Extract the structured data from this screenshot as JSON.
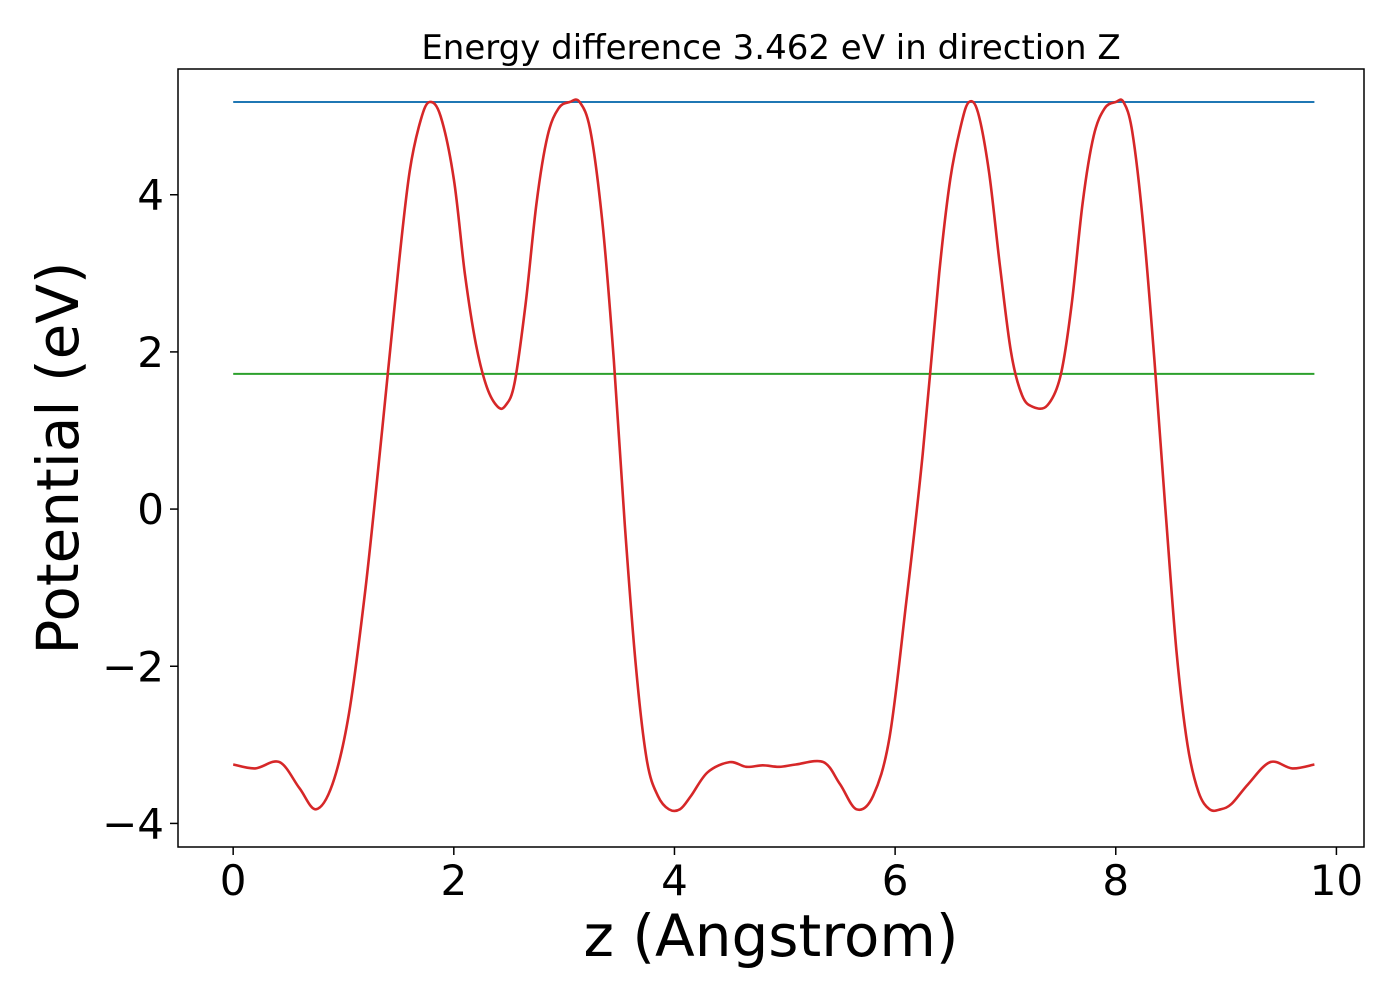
{
  "chart_data": {
    "type": "line",
    "title": "Energy difference 3.462 eV in direction Z",
    "xlabel": "z (Angstrom)",
    "ylabel": "Potential (eV)",
    "xlim": [
      -0.5,
      10.25
    ],
    "ylim": [
      -4.3,
      5.6
    ],
    "xticks": [
      0,
      2,
      4,
      6,
      8,
      10
    ],
    "xtick_labels": [
      "0",
      "2",
      "4",
      "6",
      "8",
      "10"
    ],
    "yticks": [
      -4,
      -2,
      0,
      2,
      4
    ],
    "ytick_labels": [
      "−4",
      "−2",
      "0",
      "2",
      "4"
    ],
    "grid": false,
    "series": [
      {
        "color": "#d62728",
        "x": [
          0.0,
          0.2,
          0.42,
          0.6,
          0.75,
          0.9,
          1.05,
          1.2,
          1.35,
          1.5,
          1.6,
          1.7,
          1.78,
          1.88,
          2.0,
          2.1,
          2.2,
          2.3,
          2.4,
          2.47,
          2.55,
          2.65,
          2.75,
          2.85,
          2.95,
          3.05,
          3.14,
          3.24,
          3.35,
          3.45,
          3.55,
          3.65,
          3.75,
          3.85,
          3.95,
          4.05,
          4.15,
          4.3,
          4.5,
          4.65,
          4.8,
          4.95,
          5.1,
          5.35,
          5.5,
          5.65,
          5.8,
          5.95,
          6.1,
          6.25,
          6.4,
          6.5,
          6.6,
          6.67,
          6.75,
          6.85,
          6.95,
          7.05,
          7.15,
          7.25,
          7.38,
          7.5,
          7.6,
          7.7,
          7.8,
          7.9,
          8.0,
          8.07,
          8.15,
          8.25,
          8.35,
          8.45,
          8.55,
          8.65,
          8.75,
          8.85,
          8.95,
          9.05,
          9.2,
          9.4,
          9.6,
          9.8
        ],
        "values": [
          -3.25,
          -3.3,
          -3.22,
          -3.55,
          -3.82,
          -3.5,
          -2.6,
          -1.0,
          1.0,
          3.1,
          4.3,
          4.95,
          5.18,
          5.0,
          4.2,
          3.0,
          2.1,
          1.55,
          1.3,
          1.32,
          1.6,
          2.6,
          3.9,
          4.75,
          5.1,
          5.18,
          5.18,
          4.8,
          3.6,
          1.9,
          -0.2,
          -2.0,
          -3.2,
          -3.65,
          -3.82,
          -3.82,
          -3.65,
          -3.35,
          -3.22,
          -3.28,
          -3.26,
          -3.28,
          -3.25,
          -3.22,
          -3.5,
          -3.82,
          -3.65,
          -2.9,
          -1.2,
          0.7,
          3.0,
          4.2,
          4.9,
          5.18,
          5.05,
          4.3,
          3.1,
          2.0,
          1.45,
          1.3,
          1.32,
          1.7,
          2.6,
          3.9,
          4.75,
          5.1,
          5.18,
          5.18,
          4.8,
          3.6,
          1.9,
          0.0,
          -1.8,
          -3.0,
          -3.6,
          -3.82,
          -3.82,
          -3.75,
          -3.5,
          -3.22,
          -3.3,
          -3.25
        ]
      },
      {
        "color": "#1f77b4",
        "x": [
          0.0,
          9.8
        ],
        "values": [
          5.18,
          5.18
        ]
      },
      {
        "color": "#2ca02c",
        "x": [
          0.0,
          9.8
        ],
        "values": [
          1.72,
          1.72
        ]
      }
    ]
  }
}
